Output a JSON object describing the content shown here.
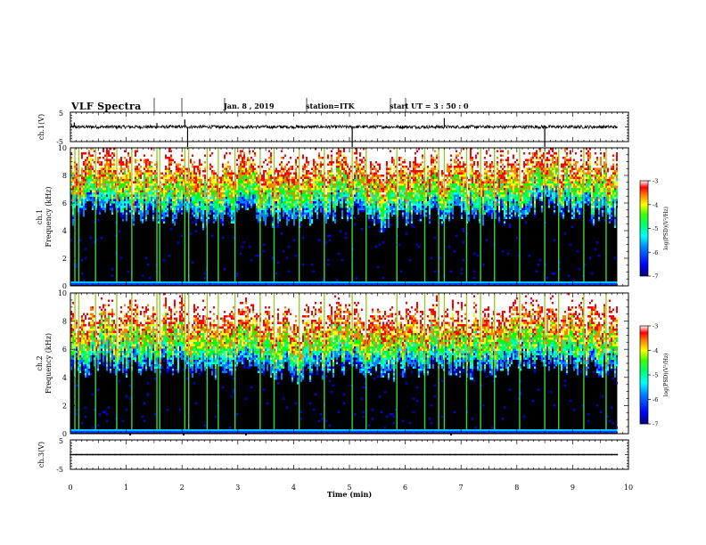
{
  "header": {
    "title": "VLF Spectra",
    "date": "Jan. 8 , 2019",
    "station": "station=ITK",
    "start": "start UT = 3 : 50 : 0"
  },
  "chart_data": [
    {
      "type": "line",
      "name": "ch1-waveform",
      "ylabel": "ch.1(V)",
      "ylim": [
        -5,
        5
      ],
      "ytick_labels": [
        "5",
        "-5"
      ],
      "xlim": [
        0,
        10
      ],
      "x": [
        0,
        0.07,
        0.6,
        0.83,
        1.08,
        1.32,
        1.55,
        1.8,
        2.05,
        2.1,
        2.3,
        2.6,
        2.8,
        3.05,
        3.3,
        3.55,
        3.8,
        4.1,
        4.35,
        4.6,
        4.85,
        5.05,
        5.3,
        5.6,
        5.85,
        6.1,
        6.35,
        6.6,
        6.7,
        6.95,
        7.2,
        7.45,
        7.7,
        7.95,
        8.2,
        8.45,
        8.5,
        8.7,
        8.95,
        9.2,
        9.45,
        9.7,
        9.8
      ],
      "values": [
        0.5,
        1.5,
        0.3,
        -0.8,
        0.4,
        0.2,
        1.3,
        0.1,
        2.5,
        -5,
        0.3,
        0.5,
        -0.2,
        0.4,
        0.3,
        0.2,
        0.5,
        0.1,
        0.3,
        0.4,
        0.2,
        -5,
        0.4,
        0.3,
        -0.5,
        0.2,
        0.4,
        0.3,
        3,
        0.2,
        0.4,
        0.1,
        0.3,
        0.4,
        0.2,
        0.3,
        -5,
        0.4,
        0.2,
        0.3,
        0.4,
        0.2,
        0.3
      ]
    },
    {
      "type": "heatmap",
      "name": "ch1-spectrogram",
      "ylabel_line1": "ch.1",
      "ylabel_line2": "Frequency (kHz)",
      "ylim": [
        0,
        10
      ],
      "ytick_labels": [
        "0",
        "2",
        "4",
        "6",
        "8",
        "10"
      ],
      "xlim": [
        0,
        10
      ],
      "data_xmax": 9.8,
      "x": [
        0,
        0.5,
        1,
        1.5,
        2,
        2.5,
        3,
        3.5,
        4,
        4.5,
        5,
        5.5,
        6,
        6.5,
        7,
        7.5,
        8,
        8.5,
        9,
        9.5,
        9.8
      ],
      "noise_floor_khz": [
        6.0,
        6.4,
        5.8,
        6.2,
        6.0,
        5.6,
        6.3,
        6.0,
        5.7,
        6.0,
        6.3,
        5.4,
        5.7,
        6.2,
        6.0,
        5.8,
        6.5,
        6.6,
        6.2,
        6.0,
        5.8
      ],
      "sferic_times": [
        0.08,
        0.15,
        0.45,
        0.83,
        1.1,
        1.55,
        1.6,
        2.05,
        2.12,
        2.45,
        2.65,
        2.95,
        3.4,
        3.65,
        4.1,
        4.55,
        5.05,
        5.3,
        5.85,
        6.35,
        6.6,
        6.7,
        7.1,
        7.35,
        7.6,
        8.05,
        8.5,
        8.75,
        9.2,
        9.6
      ],
      "colorbar": {
        "label": "log(PSD)(V²/Hz)",
        "range": [
          -7,
          -3
        ],
        "tick_labels": [
          "-3",
          "-4",
          "-5",
          "-6",
          "-7"
        ]
      }
    },
    {
      "type": "heatmap",
      "name": "ch2-spectrogram",
      "ylabel_line1": "ch.2",
      "ylabel_line2": "Frequency (kHz)",
      "ylim": [
        0,
        10
      ],
      "ytick_labels": [
        "0",
        "2",
        "4",
        "6",
        "8",
        "10"
      ],
      "xlim": [
        0,
        10
      ],
      "data_xmax": 9.8,
      "x": [
        0,
        0.5,
        1,
        1.5,
        2,
        2.5,
        3,
        3.5,
        4,
        4.5,
        5,
        5.5,
        6,
        6.5,
        7,
        7.5,
        8,
        8.5,
        9,
        9.5,
        9.8
      ],
      "noise_floor_khz": [
        5.4,
        6.0,
        5.6,
        5.9,
        5.5,
        5.3,
        5.8,
        5.6,
        5.1,
        5.4,
        5.8,
        5.0,
        5.4,
        5.8,
        5.5,
        5.3,
        5.9,
        6.1,
        5.7,
        5.5,
        5.2
      ],
      "sferic_times": [
        0.08,
        0.15,
        0.45,
        0.83,
        1.1,
        1.55,
        1.6,
        2.05,
        2.12,
        2.45,
        2.65,
        2.95,
        3.4,
        3.65,
        4.1,
        4.55,
        5.05,
        5.3,
        5.85,
        6.35,
        6.6,
        6.7,
        7.1,
        7.35,
        7.6,
        8.05,
        8.5,
        8.75,
        9.2,
        9.6
      ],
      "colorbar": {
        "label": "log(PSD)(V²/Hz)",
        "range": [
          -7,
          -3
        ],
        "tick_labels": [
          "-3",
          "-4",
          "-5",
          "-6",
          "-7"
        ]
      }
    },
    {
      "type": "line",
      "name": "ch3-waveform",
      "ylabel": "ch.3(V)",
      "ylim": [
        -5,
        5
      ],
      "ytick_labels": [
        "5",
        "-5"
      ],
      "xlim": [
        0,
        10
      ],
      "x": [
        0,
        9.8
      ],
      "values": [
        0,
        0
      ],
      "xlabel": "Time (min)",
      "xtick_labels": [
        "0",
        "1",
        "2",
        "3",
        "4",
        "5",
        "6",
        "7",
        "8",
        "9",
        "10"
      ]
    }
  ],
  "colors": {
    "background": "#000000",
    "colormap": [
      "#0000a0",
      "#0000ff",
      "#0080ff",
      "#00ffff",
      "#00ff80",
      "#00ff00",
      "#ffff00",
      "#ff8000",
      "#ff0000",
      "#ffffff"
    ]
  }
}
